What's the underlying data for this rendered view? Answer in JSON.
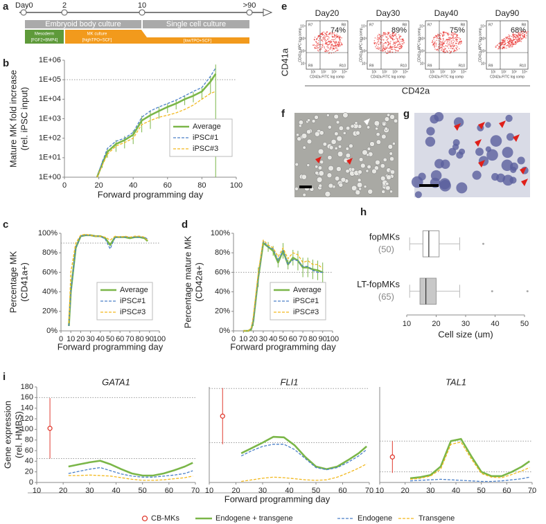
{
  "panel_labels": [
    "a",
    "b",
    "c",
    "d",
    "e",
    "f",
    "g",
    "h",
    "i"
  ],
  "timeline": {
    "days": [
      "Day0",
      "2",
      "10",
      ">90"
    ],
    "phases": [
      "Embryoid body culture",
      "Single cell culture"
    ],
    "media": [
      "Mesoderm",
      "[FGF2+BMP4]",
      "MK culture",
      "[highTPO+SCF]",
      "[lowTPO+SCF]"
    ]
  },
  "flow_cytometry": {
    "y_label": "CD41a",
    "x_label": "CD42a",
    "inner_y_label": "CD41a-APC log comp",
    "inner_x_label": "CD42a-FITC log comp",
    "ticks": [
      "10¹",
      "10²",
      "10³",
      "10⁴"
    ],
    "gates": [
      "R7",
      "R8",
      "R9",
      "R10"
    ],
    "panels": [
      {
        "title": "Day20",
        "percent": "74%"
      },
      {
        "title": "Day30",
        "percent": "89%"
      },
      {
        "title": "Day40",
        "percent": "75%"
      },
      {
        "title": "Day90",
        "percent": "68%"
      }
    ]
  },
  "chart_data": [
    {
      "type": "line",
      "log_y": true,
      "xlabel": "Forward programming day",
      "ylabel": [
        "Mature MK fold increase",
        "(rel. iPSC input)"
      ],
      "x": [
        19,
        22,
        25,
        30,
        35,
        40,
        45,
        50,
        55,
        60,
        65,
        70,
        75,
        80,
        85,
        88
      ],
      "xlim": [
        0,
        100
      ],
      "xticks": [
        0,
        20,
        40,
        60,
        80,
        100
      ],
      "ylim": [
        1,
        1000000
      ],
      "yticks": [
        {
          "value": 1,
          "label": "1E+00"
        },
        {
          "value": 10,
          "label": "1E+01"
        },
        {
          "value": 100,
          "label": "1E+02"
        },
        {
          "value": 1000,
          "label": "1E+03"
        },
        {
          "value": 10000,
          "label": "1E+04"
        },
        {
          "value": 100000,
          "label": "1E+05"
        },
        {
          "value": 1000000,
          "label": "1E+06"
        }
      ],
      "ref_lines": [
        100000
      ],
      "legend": "lower-right",
      "series": [
        {
          "name": "Average",
          "color": "#7ab648",
          "values": [
            1,
            5,
            20,
            50,
            80,
            150,
            800,
            1500,
            2500,
            4000,
            6000,
            10000,
            15000,
            25000,
            80000,
            200000
          ],
          "errors": [
            0,
            2,
            10,
            30,
            50,
            100,
            600,
            1200,
            1500,
            2000,
            3000,
            5000,
            8000,
            15000,
            60000,
            400000
          ]
        },
        {
          "name": "iPSC#1",
          "color": "#4a7fc8",
          "dash": true,
          "values": [
            1,
            6,
            30,
            70,
            100,
            200,
            1200,
            2500,
            4000,
            6000,
            9000,
            15000,
            25000,
            40000,
            150000,
            400000
          ]
        },
        {
          "name": "iPSC#3",
          "color": "#f2b81c",
          "dash": true,
          "values": [
            1,
            4,
            15,
            40,
            60,
            100,
            500,
            800,
            1200,
            1500,
            2000,
            3000,
            5000,
            10000,
            20000,
            25000
          ]
        }
      ]
    },
    {
      "type": "line",
      "xlabel": "Forward programming day",
      "ylabel": [
        "Percentage MK",
        "(CD41a+)"
      ],
      "x": [
        8,
        10,
        15,
        20,
        25,
        30,
        35,
        40,
        45,
        50,
        55,
        60,
        65,
        70,
        75,
        80,
        85,
        88
      ],
      "xlim": [
        0,
        100
      ],
      "xticks": [
        0,
        10,
        20,
        30,
        40,
        50,
        60,
        70,
        80,
        90,
        100
      ],
      "ylim": [
        0,
        100
      ],
      "yticks": [
        {
          "value": 0,
          "label": "0%"
        },
        {
          "value": 20,
          "label": "20%"
        },
        {
          "value": 40,
          "label": "40%"
        },
        {
          "value": 60,
          "label": "60%"
        },
        {
          "value": 80,
          "label": "80%"
        },
        {
          "value": 100,
          "label": "100%"
        }
      ],
      "ref_lines": [
        90
      ],
      "legend": "lower-right",
      "series": [
        {
          "name": "Average",
          "color": "#7ab648",
          "values": [
            5,
            40,
            85,
            97,
            98,
            98,
            97,
            97,
            95,
            88,
            96,
            96,
            96,
            95,
            96,
            96,
            95,
            92
          ]
        },
        {
          "name": "iPSC#1",
          "color": "#4a7fc8",
          "dash": true,
          "values": [
            5,
            40,
            85,
            97,
            98,
            98,
            97,
            97,
            94,
            84,
            96,
            96,
            96,
            96,
            96,
            96,
            96,
            94
          ]
        },
        {
          "name": "iPSC#3",
          "color": "#f2b81c",
          "dash": true,
          "values": [
            8,
            60,
            90,
            98,
            99,
            98,
            97,
            97,
            96,
            93,
            97,
            96,
            97,
            96,
            97,
            97,
            96,
            92
          ]
        }
      ]
    },
    {
      "type": "line",
      "xlabel": "Forward programming day",
      "ylabel": [
        "Percentage mature MK",
        "(CD42a+)"
      ],
      "x": [
        10,
        15,
        18,
        20,
        25,
        30,
        35,
        40,
        45,
        50,
        55,
        60,
        65,
        70,
        75,
        80,
        85,
        90
      ],
      "xlim": [
        0,
        100
      ],
      "xticks": [
        0,
        10,
        20,
        30,
        40,
        50,
        60,
        70,
        80,
        90,
        100
      ],
      "ylim": [
        0,
        100
      ],
      "yticks": [
        {
          "value": 0,
          "label": "0%"
        },
        {
          "value": 20,
          "label": "20%"
        },
        {
          "value": 40,
          "label": "40%"
        },
        {
          "value": 60,
          "label": "60%"
        },
        {
          "value": 80,
          "label": "80%"
        },
        {
          "value": 100,
          "label": "100%"
        }
      ],
      "ref_lines": [
        60
      ],
      "legend": "lower-right",
      "series": [
        {
          "name": "Average",
          "color": "#7ab648",
          "values": [
            0,
            0,
            2,
            10,
            55,
            90,
            86,
            82,
            70,
            82,
            68,
            75,
            72,
            65,
            65,
            63,
            62,
            60
          ],
          "errors": [
            0,
            0,
            2,
            5,
            10,
            3,
            5,
            5,
            5,
            8,
            5,
            8,
            10,
            10,
            10,
            10,
            10,
            10
          ]
        },
        {
          "name": "iPSC#1",
          "color": "#4a7fc8",
          "dash": true,
          "values": [
            0,
            0,
            2,
            10,
            55,
            92,
            86,
            84,
            72,
            82,
            68,
            73,
            72,
            66,
            66,
            62,
            60,
            60
          ]
        },
        {
          "name": "iPSC#3",
          "color": "#f2b81c",
          "dash": true,
          "values": [
            0,
            0,
            3,
            15,
            60,
            93,
            88,
            85,
            76,
            85,
            74,
            80,
            78,
            70,
            72,
            68,
            68,
            64
          ]
        }
      ]
    },
    {
      "type": "box",
      "xlabel": "Cell size (um)",
      "categories": [
        "fopMKs",
        "LT-fopMKs"
      ],
      "counts": [
        "(50)",
        "(65)"
      ],
      "xlim": [
        10,
        50
      ],
      "xticks": [
        10,
        20,
        30,
        40,
        50
      ],
      "colors": [
        "#ffffff",
        "#c8c8c8"
      ],
      "boxes": [
        {
          "whisker_low": 11,
          "q1": 15.5,
          "median": 17.5,
          "q3": 21,
          "whisker_high": 28,
          "outliers": [
            36
          ]
        },
        {
          "whisker_low": 11,
          "q1": 14.5,
          "median": 16.5,
          "q3": 20,
          "whisker_high": 28,
          "outliers": [
            39,
            51
          ]
        }
      ]
    },
    {
      "type": "line",
      "title": "GATA1",
      "xlabel": "Forward programming day",
      "ylabel": [
        "Gene expression",
        "(rel. HMBS)"
      ],
      "x": [
        22,
        26,
        30,
        34,
        38,
        42,
        46,
        50,
        54,
        58,
        62,
        66,
        69
      ],
      "xlim": [
        10,
        70
      ],
      "xticks": [
        10,
        20,
        30,
        40,
        50,
        60,
        70
      ],
      "ylim": [
        0,
        180
      ],
      "yticks": [
        0,
        20,
        40,
        60,
        80,
        100,
        120,
        140,
        160,
        180
      ],
      "ref_lines": [
        160,
        45
      ],
      "legend": "bottom",
      "series": [
        {
          "name": "CB-MKs",
          "color": "#e03a2f",
          "marker": "circle",
          "x": [
            15
          ],
          "values": [
            102
          ],
          "errors": [
            57
          ]
        },
        {
          "name": "Endogene + transgene",
          "color": "#7ab648",
          "values": [
            30,
            34,
            38,
            41,
            34,
            25,
            17,
            13,
            13,
            17,
            23,
            30,
            37
          ]
        },
        {
          "name": "Endogene",
          "color": "#4a7fc8",
          "dash": true,
          "values": [
            17,
            21,
            25,
            28,
            22,
            16,
            12,
            10,
            10,
            12,
            14,
            17,
            22
          ]
        },
        {
          "name": "Transgene",
          "color": "#f2b81c",
          "dash": true,
          "values": [
            13,
            13,
            14,
            13,
            12,
            9,
            6,
            4,
            4,
            5,
            7,
            9,
            12
          ]
        }
      ]
    },
    {
      "type": "line",
      "title": "FLI1",
      "x": [
        22,
        26,
        30,
        34,
        38,
        42,
        46,
        50,
        54,
        58,
        62,
        66,
        69
      ],
      "xlim": [
        10,
        70
      ],
      "xticks": [
        10,
        20,
        30,
        40,
        50,
        60,
        70
      ],
      "ylim": [
        0,
        180
      ],
      "ref_lines": [
        177,
        75
      ],
      "series": [
        {
          "color": "#e03a2f",
          "marker": "circle",
          "x": [
            15
          ],
          "values": [
            125
          ],
          "errors": [
            53
          ]
        },
        {
          "color": "#7ab648",
          "values": [
            55,
            65,
            75,
            86,
            85,
            70,
            48,
            30,
            25,
            30,
            42,
            55,
            68
          ]
        },
        {
          "color": "#4a7fc8",
          "dash": true,
          "values": [
            50,
            60,
            68,
            72,
            72,
            62,
            45,
            28,
            24,
            28,
            38,
            50,
            62
          ]
        },
        {
          "color": "#f2b81c",
          "dash": true,
          "values": [
            2,
            5,
            8,
            10,
            9,
            7,
            5,
            4,
            5,
            10,
            18,
            27,
            35
          ]
        }
      ]
    },
    {
      "type": "line",
      "title": "TAL1",
      "x": [
        22,
        26,
        30,
        34,
        38,
        42,
        46,
        50,
        54,
        58,
        62,
        66,
        69
      ],
      "xlim": [
        10,
        70
      ],
      "xticks": [
        10,
        20,
        30,
        40,
        50,
        60,
        70
      ],
      "ylim": [
        0,
        180
      ],
      "ref_lines": [
        78,
        20
      ],
      "series": [
        {
          "color": "#e03a2f",
          "marker": "circle",
          "x": [
            15
          ],
          "values": [
            48
          ],
          "errors": [
            30
          ]
        },
        {
          "color": "#7ab648",
          "values": [
            8,
            10,
            14,
            30,
            78,
            82,
            50,
            20,
            12,
            12,
            20,
            30,
            40
          ]
        },
        {
          "color": "#4a7fc8",
          "dash": true,
          "values": [
            3,
            4,
            5,
            6,
            5,
            4,
            3,
            2,
            2,
            3,
            5,
            7,
            10
          ]
        },
        {
          "color": "#f2b81c",
          "dash": true,
          "values": [
            6,
            8,
            12,
            25,
            72,
            76,
            45,
            17,
            10,
            9,
            15,
            22,
            28
          ]
        }
      ]
    }
  ]
}
